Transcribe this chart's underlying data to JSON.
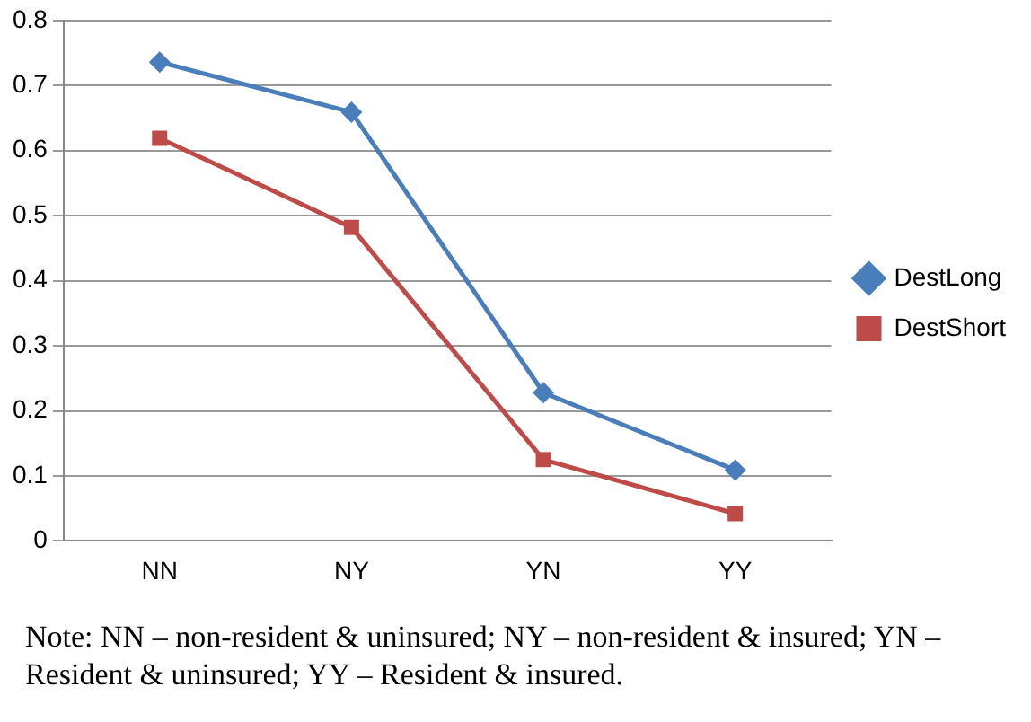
{
  "chart_data": {
    "type": "line",
    "categories": [
      "NN",
      "NY",
      "YN",
      "YY"
    ],
    "series": [
      {
        "name": "DestLong",
        "color": "#4a7ebb",
        "marker": "diamond",
        "values": [
          0.736,
          0.659,
          0.228,
          0.109
        ]
      },
      {
        "name": "DestShort",
        "color": "#be4b48",
        "marker": "square",
        "values": [
          0.619,
          0.482,
          0.125,
          0.042
        ]
      }
    ],
    "ylim": [
      0,
      0.8
    ],
    "yticks": [
      0,
      0.1,
      0.2,
      0.3,
      0.4,
      0.5,
      0.6,
      0.7,
      0.8
    ],
    "grid": "y",
    "legend": "right",
    "line_style": "solid",
    "annotations": [
      "Note: NN – non-resident & uninsured; NY – non-resident & insured; YN – Resident & uninsured; YY – Resident & insured."
    ]
  }
}
